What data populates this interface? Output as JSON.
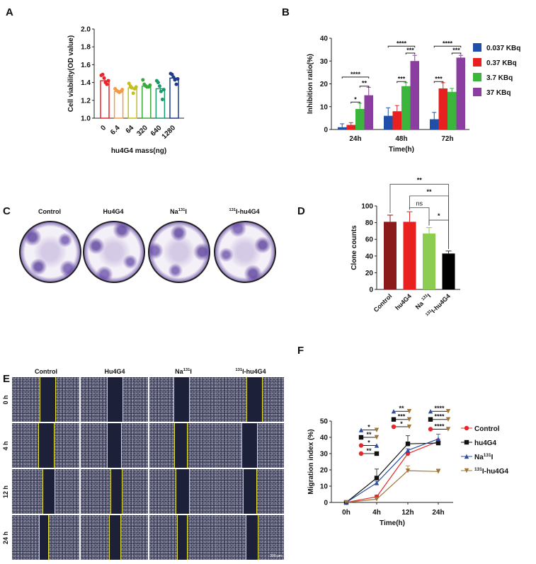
{
  "panels": {
    "A": "A",
    "B": "B",
    "C": "C",
    "D": "D",
    "E": "E",
    "F": "F"
  },
  "chart_data": [
    {
      "id": "A",
      "type": "bar",
      "xlabel": "hu4G4 mass(ng)",
      "ylabel": "Cell viability(OD value)",
      "ylim": [
        1.0,
        2.0
      ],
      "yticks": [
        "1.0",
        "1.2",
        "1.4",
        "1.6",
        "1.8",
        "2.0"
      ],
      "categories": [
        "0",
        "6.4",
        "64",
        "320",
        "640",
        "1280"
      ],
      "values": [
        1.42,
        1.3,
        1.34,
        1.36,
        1.33,
        1.45
      ],
      "errors": [
        0.02,
        0.01,
        0.02,
        0.02,
        0.04,
        0.02
      ],
      "points": [
        [
          1.48,
          1.49,
          1.45,
          1.4,
          1.38,
          1.42
        ],
        [
          1.33,
          1.31,
          1.3,
          1.29,
          1.3,
          1.32
        ],
        [
          1.39,
          1.36,
          1.34,
          1.28,
          1.33,
          1.35
        ],
        [
          1.43,
          1.38,
          1.36,
          1.35,
          1.35,
          1.37
        ],
        [
          1.42,
          1.4,
          1.36,
          1.3,
          1.21,
          1.32
        ],
        [
          1.5,
          1.49,
          1.46,
          1.43,
          1.38,
          1.44
        ]
      ],
      "colors": [
        "#e8262a",
        "#f59a45",
        "#c4be1e",
        "#3aaa3a",
        "#1a9a6a",
        "#1f3b8a"
      ]
    },
    {
      "id": "B",
      "type": "bar",
      "xlabel": "Time(h)",
      "ylabel": "Inhibition ratio(%)",
      "ylim": [
        0,
        40
      ],
      "yticks": [
        "0",
        "10",
        "20",
        "30",
        "40"
      ],
      "categories": [
        "24h",
        "48h",
        "72h"
      ],
      "legend_position": "right",
      "series": [
        {
          "name": "0.037 KBq",
          "color": "#1f4fa8",
          "values": [
            1,
            6,
            4.5
          ],
          "errors": [
            1.5,
            3.5,
            3
          ]
        },
        {
          "name": "0.37 KBq",
          "color": "#e82020",
          "values": [
            2,
            8,
            18
          ],
          "errors": [
            1,
            2.5,
            2.5
          ]
        },
        {
          "name": "3.7 KBq",
          "color": "#3cb53c",
          "values": [
            9,
            19,
            16.5
          ],
          "errors": [
            2.5,
            1.5,
            1.5
          ]
        },
        {
          "name": "37 KBq",
          "color": "#8a3fa0",
          "values": [
            15,
            30,
            31.5
          ],
          "errors": [
            3.5,
            2.5,
            1
          ]
        }
      ],
      "significance": [
        {
          "group": 0,
          "from": 0,
          "to": 3,
          "y": 23,
          "label": "****"
        },
        {
          "group": 0,
          "from": 2,
          "to": 3,
          "y": 19,
          "label": "**"
        },
        {
          "group": 0,
          "from": 1,
          "to": 2,
          "y": 12,
          "label": "*"
        },
        {
          "group": 1,
          "from": 0,
          "to": 3,
          "y": 36.5,
          "label": "****"
        },
        {
          "group": 1,
          "from": 2,
          "to": 3,
          "y": 33.5,
          "label": "***"
        },
        {
          "group": 1,
          "from": 1,
          "to": 2,
          "y": 21,
          "label": "***"
        },
        {
          "group": 2,
          "from": 0,
          "to": 3,
          "y": 36.5,
          "label": "****"
        },
        {
          "group": 2,
          "from": 2,
          "to": 3,
          "y": 33.5,
          "label": "***"
        },
        {
          "group": 2,
          "from": 0,
          "to": 1,
          "y": 21,
          "label": "***"
        }
      ]
    },
    {
      "id": "D",
      "type": "bar",
      "xlabel": "",
      "ylabel": "Clone counts",
      "ylim": [
        0,
        100
      ],
      "yticks": [
        "0",
        "20",
        "40",
        "60",
        "80",
        "100"
      ],
      "categories": [
        {
          "pre": "Control",
          "sup": "",
          "post": ""
        },
        {
          "pre": "hu4G4",
          "sup": "",
          "post": ""
        },
        {
          "pre": "Na ",
          "sup": "131",
          "post": "I"
        },
        {
          "pre": "",
          "sup": "131",
          "post": "I-hu4G4"
        }
      ],
      "values": [
        81,
        81,
        67,
        43
      ],
      "errors": [
        8,
        12,
        7,
        3
      ],
      "colors": [
        "#8b1a1a",
        "#e82020",
        "#8ccc50",
        "#000000"
      ],
      "significance": [
        {
          "from": 0,
          "to": 3,
          "y": 126,
          "label": "**"
        },
        {
          "from": 1,
          "to": 3,
          "y": 112,
          "label": "**"
        },
        {
          "from": 1,
          "to": 2,
          "y": 98,
          "label": "ns"
        },
        {
          "from": 2,
          "to": 3,
          "y": 83,
          "label": "*"
        }
      ]
    },
    {
      "id": "F",
      "type": "line",
      "xlabel": "Time(h)",
      "ylabel": "Migration index (%)",
      "ylim": [
        0,
        50
      ],
      "yticks": [
        "0",
        "10",
        "20",
        "30",
        "40",
        "50"
      ],
      "categories": [
        "0h",
        "4h",
        "12h",
        "24h"
      ],
      "legend_position": "right",
      "series": [
        {
          "name": {
            "pre": "Control",
            "sup": "",
            "post": ""
          },
          "color": "#e8262a",
          "marker": "circle",
          "values": [
            0,
            3.5,
            30,
            37.5
          ],
          "errors": [
            0,
            1,
            1,
            1.5
          ]
        },
        {
          "name": {
            "pre": "hu4G4",
            "sup": "",
            "post": ""
          },
          "color": "#111111",
          "marker": "square",
          "values": [
            0,
            15,
            36,
            36.5
          ],
          "errors": [
            0,
            5.5,
            5,
            1
          ]
        },
        {
          "name": {
            "pre": "Na",
            "sup": "131",
            "post": "I"
          },
          "color": "#2a4fa0",
          "marker": "triangle",
          "values": [
            0,
            12,
            32,
            39
          ],
          "errors": [
            0,
            1,
            1,
            3
          ]
        },
        {
          "name": {
            "pre": "",
            "sup": "131",
            "post": "I-hu4G4"
          },
          "color": "#a0763a",
          "marker": "triangle-down",
          "values": [
            0,
            2,
            19.5,
            19
          ],
          "errors": [
            0,
            1,
            3,
            1.5
          ]
        }
      ],
      "significance": [
        {
          "time": 1,
          "a": 2,
          "b": 3,
          "y": 44.5,
          "label": "*"
        },
        {
          "time": 1,
          "a": 1,
          "b": 3,
          "y": 40,
          "label": "**"
        },
        {
          "time": 1,
          "a": 0,
          "b": 2,
          "y": 35,
          "label": "*"
        },
        {
          "time": 1,
          "a": 0,
          "b": 1,
          "y": 30,
          "label": "**"
        },
        {
          "time": 2,
          "a": 2,
          "b": 3,
          "y": 56,
          "label": "**"
        },
        {
          "time": 2,
          "a": 1,
          "b": 3,
          "y": 51,
          "label": "***"
        },
        {
          "time": 2,
          "a": 0,
          "b": 3,
          "y": 46.5,
          "label": "*"
        },
        {
          "time": 3,
          "a": 2,
          "b": 3,
          "y": 56,
          "label": "****"
        },
        {
          "time": 3,
          "a": 1,
          "b": 3,
          "y": 51,
          "label": "****"
        },
        {
          "time": 3,
          "a": 0,
          "b": 3,
          "y": 45,
          "label": "****"
        }
      ]
    }
  ],
  "panel_C": {
    "columns": [
      {
        "pre": "Control",
        "sup": "",
        "post": ""
      },
      {
        "pre": "Hu4G4",
        "sup": "",
        "post": ""
      },
      {
        "pre": "Na",
        "sup": "131",
        "post": "I"
      },
      {
        "pre": "",
        "sup": "131",
        "post": "I-hu4G4"
      }
    ]
  },
  "panel_E": {
    "columns": [
      {
        "pre": "Control",
        "sup": "",
        "post": ""
      },
      {
        "pre": "Hu4G4",
        "sup": "",
        "post": ""
      },
      {
        "pre": "Na",
        "sup": "131",
        "post": "I"
      },
      {
        "pre": "",
        "sup": "131",
        "post": "I-hu4G4"
      }
    ],
    "rows": [
      "0 h",
      "4 h",
      "12 h",
      "24 h"
    ],
    "scale_bar": "200 μm"
  }
}
